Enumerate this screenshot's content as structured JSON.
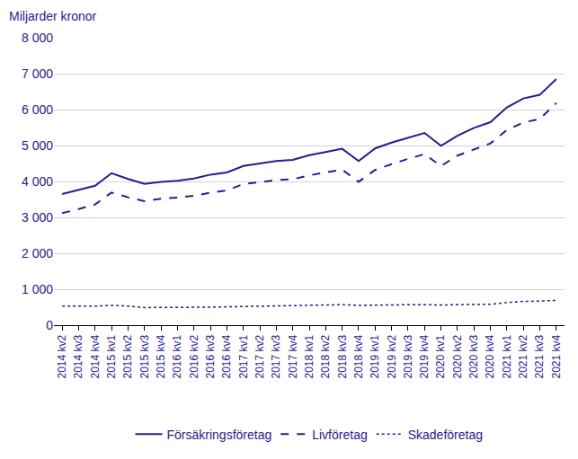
{
  "chart_data": {
    "type": "line",
    "ylabel": "Miljarder kronor",
    "categories": [
      "2014 kv2",
      "2014 kv3",
      "2014 kv4",
      "2015 kv1",
      "2015 kv2",
      "2015 kv3",
      "2015 kv4",
      "2016 kv1",
      "2016 kv2",
      "2016 kv3",
      "2016 kv4",
      "2017 kv1",
      "2017 kv2",
      "2017 kv3",
      "2017 kv4",
      "2018 kv1",
      "2018 kv2",
      "2018 kv3",
      "2018 kv4",
      "2019 kv1",
      "2019 kv2",
      "2019 kv3",
      "2019 kv4",
      "2020 kv1",
      "2020 kv2",
      "2020 kv3",
      "2020 kv4",
      "2021 kv1",
      "2021 kv2",
      "2021 kv3",
      "2021 kv4"
    ],
    "series": [
      {
        "name": "Försäkringsföretag",
        "color": "#2a1b8e",
        "line_style": "solid",
        "values": [
          3650,
          3760,
          3880,
          4230,
          4070,
          3930,
          3990,
          4020,
          4080,
          4190,
          4250,
          4430,
          4500,
          4570,
          4600,
          4730,
          4820,
          4910,
          4570,
          4920,
          5080,
          5210,
          5350,
          4990,
          5270,
          5490,
          5650,
          6060,
          6310,
          6410,
          6850
        ]
      },
      {
        "name": "Livföretag",
        "color": "#2a1b8e",
        "line_style": "dashed",
        "values": [
          3120,
          3230,
          3360,
          3690,
          3560,
          3450,
          3520,
          3550,
          3600,
          3690,
          3750,
          3930,
          3980,
          4040,
          4060,
          4170,
          4250,
          4330,
          3990,
          4320,
          4480,
          4630,
          4760,
          4430,
          4720,
          4900,
          5060,
          5430,
          5640,
          5740,
          6180
        ]
      },
      {
        "name": "Skadeföretag",
        "color": "#2a1b8e",
        "line_style": "dotted",
        "values": [
          530,
          530,
          530,
          550,
          530,
          490,
          490,
          490,
          490,
          500,
          510,
          520,
          520,
          530,
          540,
          550,
          560,
          570,
          550,
          560,
          570,
          570,
          570,
          560,
          570,
          580,
          580,
          630,
          660,
          670,
          690
        ]
      }
    ],
    "ylim": [
      0,
      8000
    ],
    "yticks": [
      0,
      {
        "value": 1000,
        "label": "1 000"
      },
      {
        "value": 2000,
        "label": "2 000"
      },
      {
        "value": 3000,
        "label": "3 000"
      },
      {
        "value": 4000,
        "label": "4 000"
      },
      {
        "value": 5000,
        "label": "5 000"
      },
      {
        "value": 6000,
        "label": "6 000"
      },
      {
        "value": 7000,
        "label": "7 000"
      },
      {
        "value": 8000,
        "label": "8 000"
      }
    ],
    "grid": true,
    "legend": "bottom"
  }
}
